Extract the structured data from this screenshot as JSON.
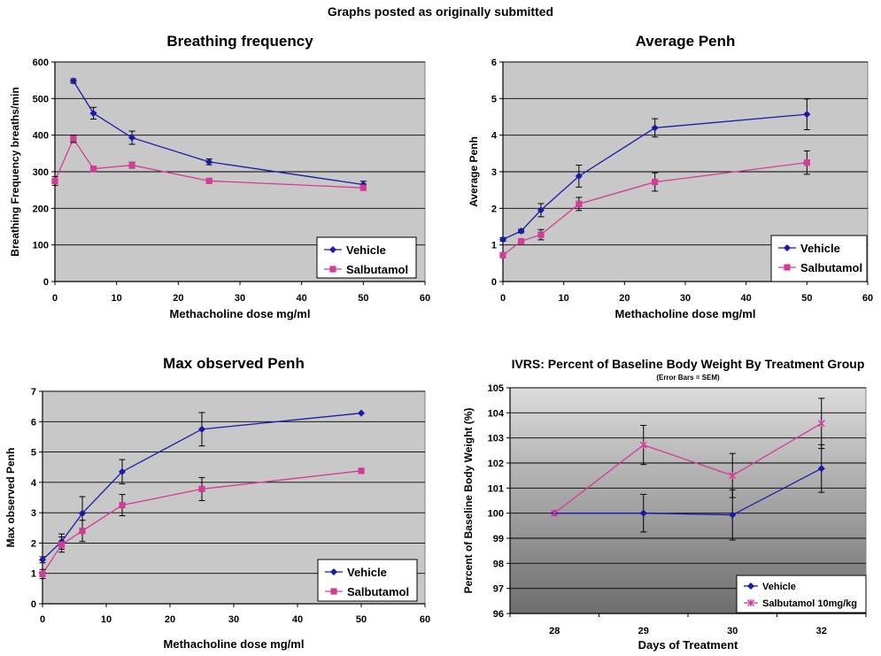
{
  "page": {
    "caption": "Graphs posted as originally submitted"
  },
  "colors": {
    "vehicle": "#1a1aa8",
    "salbutamol": "#d23c96",
    "plot_bg": "#c8c8c8"
  },
  "chart_data": [
    {
      "type": "line",
      "title": "Breathing frequency",
      "subtitle": "",
      "xlabel": "Methacholine dose mg/ml",
      "ylabel": "Breathing Frequency breaths/min",
      "xlim": [
        0,
        60
      ],
      "ylim": [
        0,
        600
      ],
      "xticks": [
        0,
        10,
        20,
        30,
        40,
        50,
        60
      ],
      "yticks": [
        0,
        100,
        200,
        300,
        400,
        500,
        600
      ],
      "grid": true,
      "legend_position": "bottom-right",
      "series": [
        {
          "name": "Vehicle",
          "marker": "diamond",
          "x": [
            3,
            6.25,
            12.5,
            25,
            50
          ],
          "y": [
            548,
            460,
            393,
            327,
            265
          ],
          "err": [
            6,
            16,
            18,
            8,
            9
          ]
        },
        {
          "name": "Salbutamol",
          "marker": "square",
          "x": [
            0,
            3,
            6.25,
            12.5,
            25,
            50
          ],
          "y": [
            275,
            390,
            308,
            318,
            275,
            256
          ],
          "err": [
            12,
            10,
            5,
            8,
            4,
            6
          ]
        }
      ]
    },
    {
      "type": "line",
      "title": "Average Penh",
      "subtitle": "",
      "xlabel": "Methacholine dose mg/ml",
      "ylabel": "Average Penh",
      "xlim": [
        0,
        60
      ],
      "ylim": [
        0,
        6
      ],
      "xticks": [
        0,
        10,
        20,
        30,
        40,
        50,
        60
      ],
      "yticks": [
        0,
        1,
        2,
        3,
        4,
        5,
        6
      ],
      "grid": true,
      "legend_position": "bottom-right",
      "series": [
        {
          "name": "Vehicle",
          "marker": "diamond",
          "x": [
            0,
            3,
            6.25,
            12.5,
            25,
            50
          ],
          "y": [
            1.15,
            1.38,
            1.95,
            2.88,
            4.2,
            4.57
          ],
          "err": [
            0.05,
            0.05,
            0.18,
            0.3,
            0.25,
            0.42
          ]
        },
        {
          "name": "Salbutamol",
          "marker": "square",
          "x": [
            0,
            3,
            6.25,
            12.5,
            25,
            50
          ],
          "y": [
            0.72,
            1.1,
            1.28,
            2.12,
            2.72,
            3.25
          ],
          "err": [
            0.05,
            0.06,
            0.14,
            0.18,
            0.25,
            0.32
          ]
        }
      ]
    },
    {
      "type": "line",
      "title": "Max observed Penh",
      "subtitle": "",
      "xlabel": "Methacholine dose mg/ml",
      "ylabel": "Max observed Penh",
      "xlim": [
        0,
        60
      ],
      "ylim": [
        0,
        7
      ],
      "xticks": [
        0,
        10,
        20,
        30,
        40,
        50,
        60
      ],
      "yticks": [
        0,
        1,
        2,
        3,
        4,
        5,
        6,
        7
      ],
      "grid": true,
      "legend_position": "bottom-right",
      "series": [
        {
          "name": "Vehicle",
          "marker": "diamond",
          "x": [
            0,
            3,
            6.25,
            12.5,
            25,
            50
          ],
          "y": [
            1.45,
            2.05,
            2.98,
            4.35,
            5.75,
            6.28
          ],
          "err": [
            0.1,
            0.25,
            0.55,
            0.4,
            0.55,
            0
          ]
        },
        {
          "name": "Salbutamol",
          "marker": "square",
          "x": [
            0,
            3,
            6.25,
            12.5,
            25,
            50
          ],
          "y": [
            0.98,
            1.95,
            2.4,
            3.25,
            3.78,
            4.38
          ],
          "err": [
            0.15,
            0.25,
            0.35,
            0.35,
            0.38,
            0
          ]
        }
      ]
    },
    {
      "type": "line",
      "title": "IVRS:  Percent of Baseline Body Weight By Treatment Group",
      "subtitle": "(Error Bars = SEM)",
      "xlabel": "Days of Treatment",
      "ylabel": "Percent of Baseline Body Weight (%)",
      "categories": [
        "28",
        "29",
        "30",
        "32"
      ],
      "ylim": [
        96,
        105
      ],
      "yticks": [
        96,
        97,
        98,
        99,
        100,
        101,
        102,
        103,
        104,
        105
      ],
      "grid": true,
      "background": "gradient",
      "legend_position": "bottom-right",
      "series": [
        {
          "name": "Vehicle",
          "marker": "diamond",
          "y": [
            100.0,
            100.0,
            99.93,
            101.78
          ],
          "err": [
            0,
            0.75,
            1.0,
            0.95
          ]
        },
        {
          "name": "Salbutamol 10mg/kg",
          "marker": "star",
          "y": [
            100.0,
            102.72,
            101.5,
            103.58
          ],
          "err": [
            0,
            0.78,
            0.88,
            1.0
          ]
        }
      ]
    }
  ]
}
